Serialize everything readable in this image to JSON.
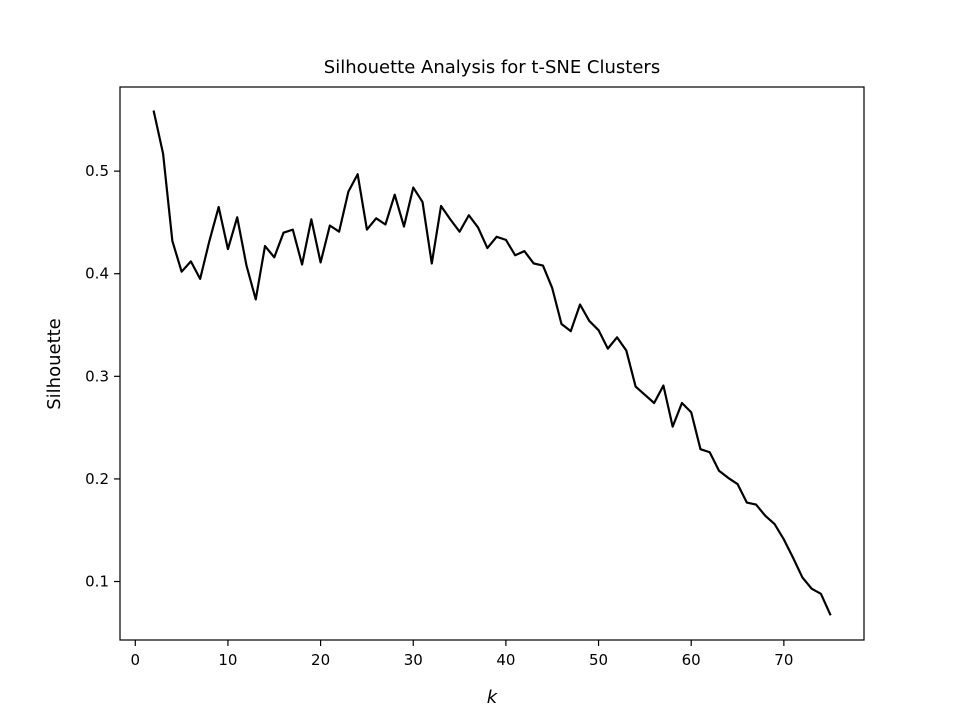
{
  "chart_data": {
    "type": "line",
    "title": "Silhouette Analysis for t-SNE Clusters",
    "xlabel": "k",
    "ylabel": "Silhouette",
    "xlim": [
      -1.65,
      78.65
    ],
    "ylim": [
      0.043,
      0.582
    ],
    "xticks": [
      0,
      10,
      20,
      30,
      40,
      50,
      60,
      70
    ],
    "yticks": [
      0.1,
      0.2,
      0.3,
      0.4,
      0.5
    ],
    "xtick_labels": [
      "0",
      "10",
      "20",
      "30",
      "40",
      "50",
      "60",
      "70"
    ],
    "ytick_labels": [
      "0.1",
      "0.2",
      "0.3",
      "0.4",
      "0.5"
    ],
    "grid": false,
    "line_color": "#000000",
    "series": [
      {
        "x": [
          2,
          3,
          4,
          5,
          6,
          7,
          8,
          9,
          10,
          11,
          12,
          13,
          14,
          15,
          16,
          17,
          18,
          19,
          20,
          21,
          22,
          23,
          24,
          25,
          26,
          27,
          28,
          29,
          30,
          31,
          32,
          33,
          34,
          35,
          36,
          37,
          38,
          39,
          40,
          41,
          42,
          43,
          44,
          45,
          46,
          47,
          48,
          49,
          50,
          51,
          52,
          53,
          54,
          55,
          56,
          57,
          58,
          59,
          60,
          61,
          62,
          63,
          64,
          65,
          66,
          67,
          68,
          69,
          70,
          71,
          72,
          73,
          74,
          75
        ],
        "values": [
          0.558,
          0.517,
          0.432,
          0.402,
          0.412,
          0.395,
          0.432,
          0.465,
          0.424,
          0.455,
          0.408,
          0.375,
          0.427,
          0.416,
          0.44,
          0.443,
          0.409,
          0.453,
          0.411,
          0.447,
          0.441,
          0.48,
          0.497,
          0.443,
          0.454,
          0.448,
          0.477,
          0.446,
          0.484,
          0.47,
          0.41,
          0.466,
          0.453,
          0.441,
          0.457,
          0.445,
          0.425,
          0.436,
          0.433,
          0.418,
          0.422,
          0.41,
          0.408,
          0.386,
          0.351,
          0.344,
          0.37,
          0.354,
          0.345,
          0.327,
          0.338,
          0.325,
          0.29,
          0.282,
          0.274,
          0.291,
          0.251,
          0.274,
          0.265,
          0.229,
          0.226,
          0.208,
          0.201,
          0.195,
          0.177,
          0.175,
          0.164,
          0.156,
          0.141,
          0.123,
          0.104,
          0.093,
          0.088,
          0.068
        ]
      }
    ]
  }
}
